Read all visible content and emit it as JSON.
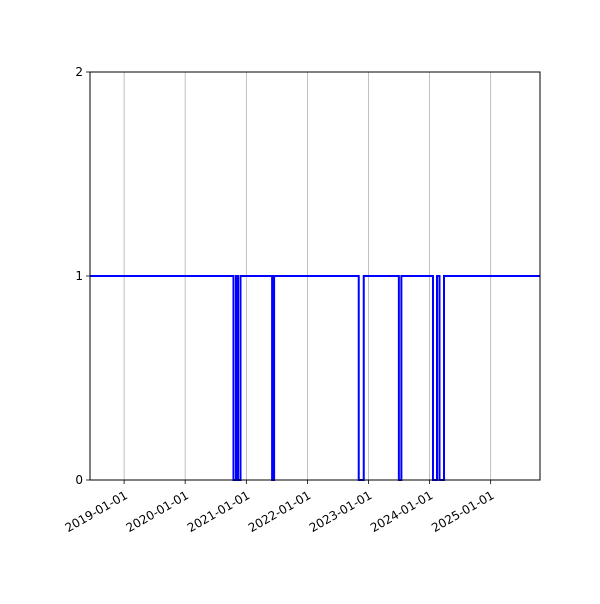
{
  "chart_data": {
    "type": "line",
    "step": "post",
    "title": "",
    "xlabel": "",
    "ylabel": "",
    "xlim": [
      "2018-06-11",
      "2025-10-23"
    ],
    "ylim": [
      0,
      2
    ],
    "yticks": [
      0,
      1,
      2
    ],
    "xticks": [
      "2019-01-01",
      "2020-01-01",
      "2021-01-01",
      "2022-01-01",
      "2023-01-01",
      "2024-01-01",
      "2025-01-01"
    ],
    "grid": "x-axis vertical lines",
    "color": "#0000ff",
    "series": [
      {
        "points": [
          [
            "2018-06-11",
            1
          ],
          [
            "2020-10-16",
            0
          ],
          [
            "2020-10-31",
            1
          ],
          [
            "2020-11-12",
            0
          ],
          [
            "2020-11-27",
            1
          ],
          [
            "2021-06-04",
            0
          ],
          [
            "2021-06-16",
            1
          ],
          [
            "2022-11-04",
            0
          ],
          [
            "2022-12-04",
            1
          ],
          [
            "2023-07-02",
            0
          ],
          [
            "2023-07-17",
            1
          ],
          [
            "2024-01-22",
            0
          ],
          [
            "2024-02-15",
            1
          ],
          [
            "2024-03-01",
            0
          ],
          [
            "2024-03-28",
            1
          ],
          [
            "2025-10-23",
            1
          ]
        ]
      }
    ]
  }
}
